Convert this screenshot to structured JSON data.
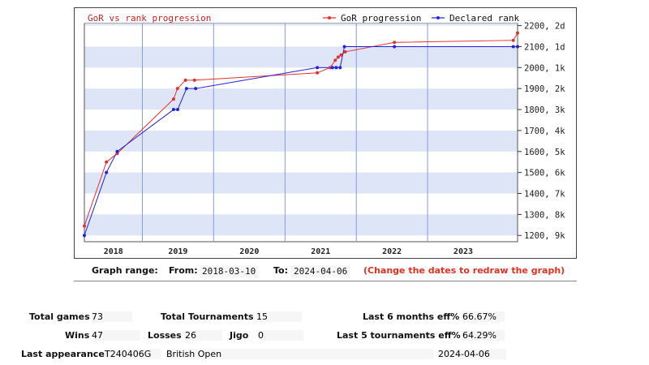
{
  "chart_data": {
    "type": "line",
    "title": "GoR vs rank progression",
    "legend": "top-right",
    "grid": true,
    "x_ticks": [
      "2018",
      "2019",
      "2020",
      "2021",
      "2022",
      "2023"
    ],
    "y_ticks": [
      {
        "value": 2200,
        "label": "2200, 2d"
      },
      {
        "value": 2100,
        "label": "2100, 1d"
      },
      {
        "value": 2000,
        "label": "2000, 1k"
      },
      {
        "value": 1900,
        "label": "1900, 2k"
      },
      {
        "value": 1800,
        "label": "1800, 3k"
      },
      {
        "value": 1700,
        "label": "1700, 4k"
      },
      {
        "value": 1600,
        "label": "1600, 5k"
      },
      {
        "value": 1500,
        "label": "1500, 6k"
      },
      {
        "value": 1400,
        "label": "1400, 7k"
      },
      {
        "value": 1300,
        "label": "1300, 8k"
      },
      {
        "value": 1200,
        "label": "1200, 9k"
      }
    ],
    "xlim": [
      "2018-03-10",
      "2024-04-06"
    ],
    "ylim": [
      1170,
      2210
    ],
    "series": [
      {
        "name": "GoR progression",
        "color": "#e03030",
        "points": [
          [
            "2018-03-10",
            1245
          ],
          [
            "2018-07-01",
            1550
          ],
          [
            "2018-08-25",
            1590
          ],
          [
            "2019-06-10",
            1850
          ],
          [
            "2019-06-30",
            1900
          ],
          [
            "2019-08-10",
            1940
          ],
          [
            "2019-09-25",
            1940
          ],
          [
            "2021-06-15",
            1975
          ],
          [
            "2021-08-20",
            2000
          ],
          [
            "2021-09-15",
            2035
          ],
          [
            "2021-09-30",
            2050
          ],
          [
            "2021-10-15",
            2060
          ],
          [
            "2021-11-05",
            2075
          ],
          [
            "2022-07-15",
            2120
          ],
          [
            "2024-03-15",
            2130
          ],
          [
            "2024-04-06",
            2165
          ]
        ]
      },
      {
        "name": "Declared rank",
        "color": "#2222dd",
        "points": [
          [
            "2018-03-10",
            1200
          ],
          [
            "2018-07-01",
            1500
          ],
          [
            "2018-08-25",
            1600
          ],
          [
            "2019-06-10",
            1800
          ],
          [
            "2019-07-01",
            1800
          ],
          [
            "2019-08-15",
            1900
          ],
          [
            "2019-10-01",
            1900
          ],
          [
            "2021-06-15",
            2000
          ],
          [
            "2021-09-01",
            2000
          ],
          [
            "2021-09-20",
            2000
          ],
          [
            "2021-10-10",
            2000
          ],
          [
            "2021-11-01",
            2100
          ],
          [
            "2022-07-15",
            2100
          ],
          [
            "2024-03-15",
            2100
          ],
          [
            "2024-04-06",
            2100
          ]
        ]
      }
    ]
  },
  "range": {
    "graph_range_label": "Graph range:",
    "from_label": "From:",
    "from_value": "2018-03-10",
    "to_label": "To:",
    "to_value": "2024-04-06",
    "note": "(Change the dates to redraw the graph)"
  },
  "stats": {
    "total_games_label": "Total games",
    "total_games": "73",
    "total_tournaments_label": "Total Tournaments",
    "total_tournaments": "15",
    "last6_label": "Last 6 months eff%",
    "last6_value": "66.67%",
    "wins_label": "Wins",
    "wins": "47",
    "losses_label": "Losses",
    "losses": "26",
    "jigo_label": "Jigo",
    "jigo": "0",
    "last5_label": "Last 5 tournaments eff%",
    "last5_value": "64.29%",
    "last_appearance_label": "Last appearance",
    "last_appearance_code": "T240406G",
    "last_appearance_name": "British Open",
    "last_appearance_date": "2024-04-06"
  }
}
